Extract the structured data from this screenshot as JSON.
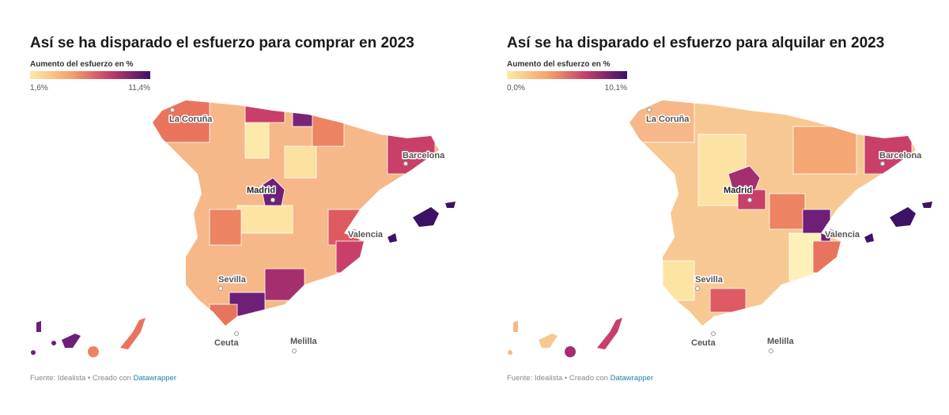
{
  "maps": [
    {
      "title": "Así se ha disparado el esfuerzo para comprar en 2023",
      "legend": {
        "title": "Aumento del esfuerzo en %",
        "min": "1,6%",
        "max": "11,4%"
      },
      "cities": [
        "La Coruña",
        "Madrid",
        "Barcelona",
        "Valencia",
        "Sevilla",
        "Ceuta",
        "Melilla"
      ],
      "source": "Fuente: Idealista • Creado con",
      "link": "Datawrapper"
    },
    {
      "title": "Así se ha disparado el esfuerzo para alquilar en 2023",
      "legend": {
        "title": "Aumento del esfuerzo en %",
        "min": "0,0%",
        "max": "10,1%"
      },
      "cities": [
        "La Coruña",
        "Madrid",
        "Barcelona",
        "Valencia",
        "Sevilla",
        "Ceuta",
        "Melilla"
      ],
      "source": "Fuente: Idealista • Creado con",
      "link": "Datawrapper"
    }
  ]
}
